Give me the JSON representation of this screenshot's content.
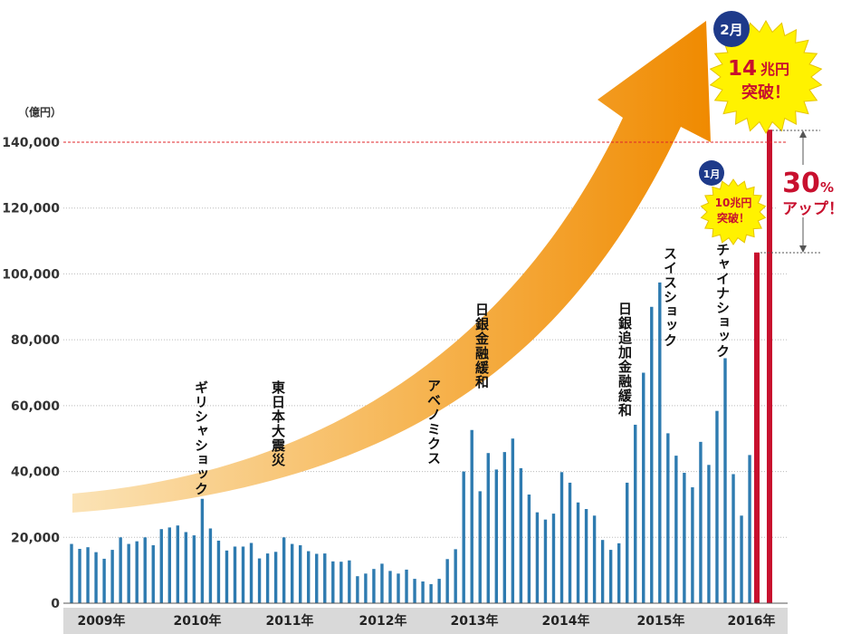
{
  "chart_data": {
    "type": "bar",
    "ylabel": "（億円）",
    "ylim": [
      0,
      140000
    ],
    "y_ticks": [
      {
        "value": 0,
        "label": "0"
      },
      {
        "value": 20000,
        "label": "20,000"
      },
      {
        "value": 40000,
        "label": "40,000"
      },
      {
        "value": 60000,
        "label": "60,000"
      },
      {
        "value": 80000,
        "label": "80,000"
      },
      {
        "value": 100000,
        "label": "100,000"
      },
      {
        "value": 120000,
        "label": "120,000"
      },
      {
        "value": 140000,
        "label": "140,000"
      }
    ],
    "x_year_labels": [
      "2009年",
      "2010年",
      "2011年",
      "2012年",
      "2013年",
      "2014年",
      "2015年",
      "2016年"
    ],
    "grid": "horizontal dotted",
    "reference_line": {
      "value": 140000,
      "style": "red dashed"
    },
    "colors": {
      "bars": "#2e7bb0",
      "highlight_bars": "#c8102e",
      "reference_line": "#e0242a",
      "badge": "#1e3a8a",
      "burst": "#fff200",
      "accent_text": "#c8102e"
    },
    "values": [
      18000,
      16500,
      17000,
      15500,
      13500,
      16200,
      20000,
      18000,
      18800,
      20000,
      17600,
      22500,
      23000,
      23600,
      21600,
      20600,
      31700,
      22700,
      19000,
      16000,
      17200,
      17200,
      18300,
      13600,
      15100,
      15600,
      20000,
      18000,
      17600,
      15800,
      15000,
      15100,
      12700,
      12600,
      13000,
      8200,
      9000,
      10400,
      12000,
      9800,
      9000,
      10200,
      7400,
      6600,
      5800,
      7400,
      13400,
      16400,
      40000,
      52600,
      34000,
      45600,
      40600,
      45900,
      50000,
      41000,
      33000,
      27600,
      25400,
      27200,
      39800,
      36600,
      30600,
      28600,
      26600,
      19200,
      16200,
      18200,
      36600,
      54200,
      70000,
      90000,
      97400,
      51600,
      44800,
      39600,
      35200,
      49000,
      42000,
      58400,
      74400,
      39200,
      26600,
      45000
    ],
    "highlight_bars": [
      {
        "month": "1月",
        "value": 106500
      },
      {
        "month": "2月",
        "value": 143800
      }
    ],
    "annotations": [
      {
        "id": "greece",
        "text": "ギリシャショック"
      },
      {
        "id": "quake",
        "text": "東日本大震災"
      },
      {
        "id": "abenomics",
        "text": "アベノミクス"
      },
      {
        "id": "boj1",
        "text": "日銀金融緩和"
      },
      {
        "id": "boj2",
        "text": "日銀追加金融緩和"
      },
      {
        "id": "swiss",
        "text": "スイスショック"
      },
      {
        "id": "china",
        "text": "チャイナショック"
      }
    ],
    "callouts": {
      "feb": {
        "badge": "2月",
        "line1_num": "14",
        "line1_unit": "兆円",
        "line2": "突破！"
      },
      "jan": {
        "badge": "1月",
        "line1": "10兆円",
        "line2": "突破！"
      },
      "increase": {
        "num": "30",
        "unit": "%",
        "text": "アップ！"
      }
    }
  }
}
